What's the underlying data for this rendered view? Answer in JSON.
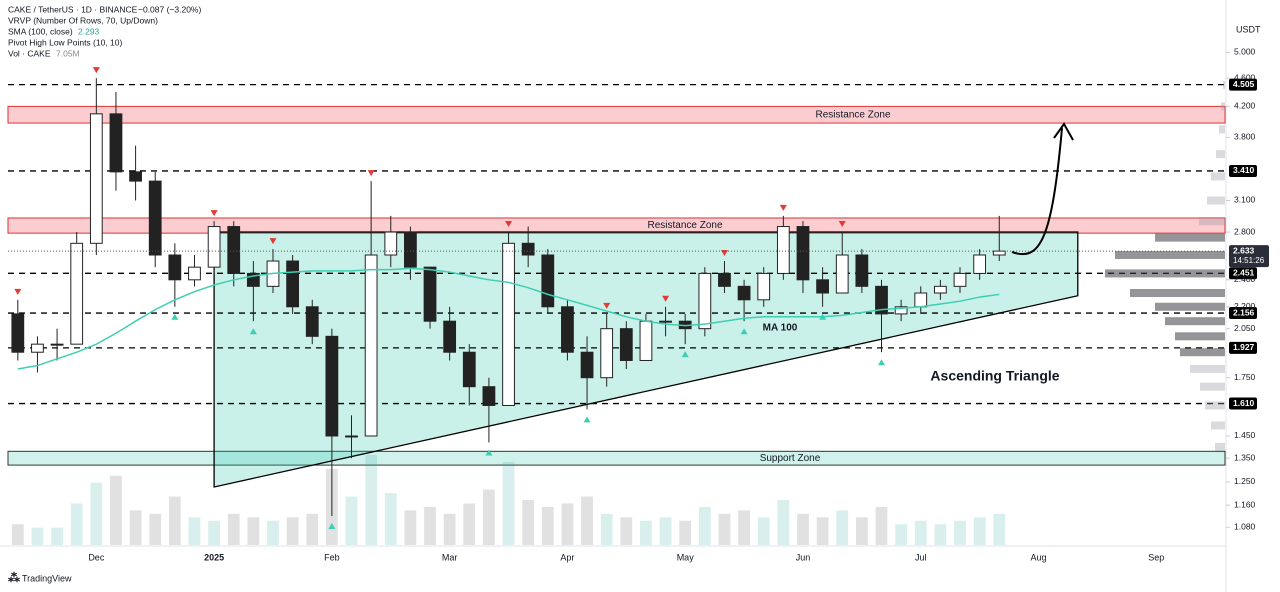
{
  "header": {
    "symbol": "CAKE / TetherUS · 1D · BINANCE",
    "change": "−0.087 (−3.20%)",
    "vrvp": "VRVP (Number Of Rows, 70, Up/Down)",
    "sma": "SMA (100, close)",
    "sma_value": "2.293",
    "pivots": "Pivot High Low Points (10, 10)",
    "vol": "Vol · CAKE",
    "vol_value": "7.05M",
    "unit": "USDT",
    "countdown": "14:51:26",
    "brand": "TradingView"
  },
  "chart_data": {
    "type": "candlestick",
    "log": true,
    "categories": [
      null,
      null,
      null,
      null,
      "Dec",
      null,
      null,
      null,
      null,
      null,
      "2025",
      null,
      null,
      null,
      null,
      null,
      "Feb",
      null,
      null,
      null,
      null,
      null,
      "Mar",
      null,
      null,
      null,
      null,
      null,
      "Apr",
      null,
      null,
      null,
      null,
      null,
      "May",
      null,
      null,
      null,
      null,
      null,
      "Jun",
      null,
      null,
      null,
      null,
      null,
      "Jul",
      null,
      null,
      null,
      null,
      null,
      "Aug",
      null,
      null,
      null,
      null,
      null,
      "Sep",
      null,
      null,
      null
    ],
    "open": [
      2.15,
      1.9,
      1.95,
      1.95,
      2.7,
      4.1,
      3.4,
      3.3,
      2.6,
      2.4,
      2.5,
      2.85,
      2.45,
      2.35,
      2.55,
      2.2,
      2.0,
      1.45,
      1.45,
      2.6,
      2.8,
      2.5,
      2.1,
      1.9,
      1.7,
      1.6,
      2.7,
      2.6,
      2.2,
      1.9,
      1.75,
      2.05,
      1.85,
      2.1,
      2.1,
      2.05,
      2.45,
      2.35,
      2.25,
      2.45,
      2.85,
      2.4,
      2.3,
      2.6,
      2.35,
      2.15,
      2.2,
      2.3,
      2.35,
      2.45,
      2.6,
      null,
      null,
      null,
      null,
      null,
      null,
      null,
      null,
      null,
      null,
      null
    ],
    "high": [
      2.25,
      2.0,
      2.05,
      2.8,
      4.6,
      4.4,
      3.7,
      3.4,
      2.7,
      2.6,
      2.9,
      2.9,
      2.55,
      2.65,
      2.6,
      2.25,
      2.05,
      1.55,
      3.3,
      2.95,
      2.85,
      2.5,
      2.2,
      1.95,
      1.75,
      2.8,
      2.85,
      2.65,
      2.25,
      2.0,
      2.15,
      2.1,
      2.15,
      2.2,
      2.15,
      2.5,
      2.55,
      2.4,
      2.5,
      2.95,
      2.9,
      2.5,
      2.8,
      2.65,
      2.4,
      2.25,
      2.35,
      2.4,
      2.5,
      2.65,
      2.95,
      null,
      null,
      null,
      null,
      null,
      null,
      null,
      null,
      null,
      null,
      null
    ],
    "low": [
      1.85,
      1.78,
      1.85,
      1.95,
      2.6,
      3.2,
      3.1,
      2.5,
      2.2,
      2.35,
      2.45,
      2.35,
      2.1,
      2.3,
      2.15,
      1.95,
      1.12,
      1.35,
      1.45,
      2.5,
      2.4,
      2.05,
      1.85,
      1.6,
      1.42,
      1.6,
      2.5,
      2.15,
      1.85,
      1.58,
      1.7,
      1.8,
      1.85,
      2.0,
      1.95,
      2.0,
      2.3,
      2.1,
      2.2,
      2.4,
      2.3,
      2.2,
      2.3,
      2.3,
      1.9,
      2.1,
      2.15,
      2.25,
      2.3,
      2.4,
      2.55,
      null,
      null,
      null,
      null,
      null,
      null,
      null,
      null,
      null,
      null,
      null
    ],
    "close": [
      1.9,
      1.95,
      1.95,
      2.7,
      4.1,
      3.4,
      3.3,
      2.6,
      2.4,
      2.5,
      2.85,
      2.45,
      2.35,
      2.55,
      2.2,
      2.0,
      1.45,
      1.45,
      2.6,
      2.8,
      2.5,
      2.1,
      1.9,
      1.7,
      1.6,
      2.7,
      2.6,
      2.2,
      1.9,
      1.75,
      2.05,
      1.85,
      2.1,
      2.1,
      2.05,
      2.45,
      2.35,
      2.25,
      2.45,
      2.85,
      2.4,
      2.3,
      2.6,
      2.35,
      2.15,
      2.2,
      2.3,
      2.35,
      2.45,
      2.6,
      2.633,
      null,
      null,
      null,
      null,
      null,
      null,
      null,
      null,
      null,
      null,
      null
    ],
    "volume": [
      6,
      5,
      5,
      12,
      18,
      20,
      10,
      9,
      14,
      8,
      7,
      9,
      8,
      7,
      8,
      9,
      22,
      14,
      26,
      15,
      10,
      11,
      9,
      12,
      16,
      24,
      13,
      11,
      12,
      14,
      9,
      8,
      7,
      8,
      7,
      11,
      9,
      10,
      8,
      13,
      9,
      8,
      10,
      8,
      11,
      6,
      7,
      6,
      7,
      8,
      9,
      null,
      null,
      null,
      null,
      null,
      null,
      null,
      null,
      null,
      null,
      null
    ],
    "ma": {
      "name": "MA 100",
      "color": "#3ecfb2",
      "values": [
        1.8,
        1.82,
        1.86,
        1.9,
        1.95,
        2.02,
        2.1,
        2.18,
        2.25,
        2.31,
        2.36,
        2.4,
        2.43,
        2.45,
        2.46,
        2.47,
        2.47,
        2.47,
        2.48,
        2.48,
        2.49,
        2.48,
        2.46,
        2.43,
        2.4,
        2.38,
        2.34,
        2.29,
        2.25,
        2.21,
        2.17,
        2.13,
        2.1,
        2.08,
        2.07,
        2.08,
        2.1,
        2.12,
        2.13,
        2.13,
        2.13,
        2.13,
        2.14,
        2.16,
        2.18,
        2.19,
        2.2,
        2.22,
        2.24,
        2.27,
        2.29,
        null,
        null,
        null,
        null,
        null,
        null,
        null,
        null,
        null,
        null,
        null
      ]
    },
    "pivot_high_at": [
      0,
      4,
      10,
      13,
      18,
      25,
      30,
      33,
      36,
      39,
      42
    ],
    "pivot_low_at": [
      8,
      12,
      16,
      24,
      29,
      34,
      37,
      41,
      44
    ],
    "zones": [
      {
        "label": "Resistance Zone",
        "from": 3.98,
        "to": 4.2
      },
      {
        "label": "Resistance Zone",
        "from": 2.79,
        "to": 2.93
      },
      {
        "label": "Support Zone",
        "from": 1.32,
        "to": 1.38
      }
    ],
    "triangle": {
      "label": "Ascending Triangle",
      "start": 10,
      "end": 54,
      "top": 2.8,
      "bottom_start": 1.23,
      "bottom_end": 2.28
    },
    "levels": [
      4.505,
      {
        "value": 3.41,
        "label": "3.410"
      },
      2.451,
      2.156,
      1.927,
      {
        "value": 1.61,
        "label": "1.610"
      }
    ],
    "last": 2.633,
    "volume_profile": {
      "prices": [
        4.5,
        4.2,
        3.9,
        3.6,
        3.35,
        3.1,
        2.9,
        2.75,
        2.6,
        2.45,
        2.3,
        2.2,
        2.1,
        2.0,
        1.9,
        1.8,
        1.7,
        1.6,
        1.5,
        1.4
      ],
      "values": [
        2,
        4,
        6,
        9,
        14,
        18,
        26,
        70,
        110,
        120,
        95,
        70,
        60,
        50,
        45,
        35,
        25,
        20,
        14,
        10
      ]
    },
    "ylim": [
      1.02,
      5.55
    ],
    "yticks": [
      {
        "value": 5,
        "label": "5.000"
      },
      {
        "value": 4.6,
        "label": "4.600"
      },
      {
        "value": 4.2,
        "label": "4.200"
      },
      {
        "value": 3.8,
        "label": "3.800"
      },
      {
        "value": 3.1,
        "label": "3.100"
      },
      {
        "value": 2.8,
        "label": "2.800"
      },
      {
        "value": 2.4,
        "label": "2.400"
      },
      {
        "value": 2.2,
        "label": "2.200"
      },
      {
        "value": 2.05,
        "label": "2.050"
      },
      {
        "value": 1.75,
        "label": "1.750"
      },
      {
        "value": 1.45,
        "label": "1.450"
      },
      {
        "value": 1.35,
        "label": "1.350"
      },
      {
        "value": 1.25,
        "label": "1.250"
      },
      {
        "value": 1.16,
        "label": "1.160"
      },
      {
        "value": 1.08,
        "label": "1.080"
      }
    ]
  }
}
